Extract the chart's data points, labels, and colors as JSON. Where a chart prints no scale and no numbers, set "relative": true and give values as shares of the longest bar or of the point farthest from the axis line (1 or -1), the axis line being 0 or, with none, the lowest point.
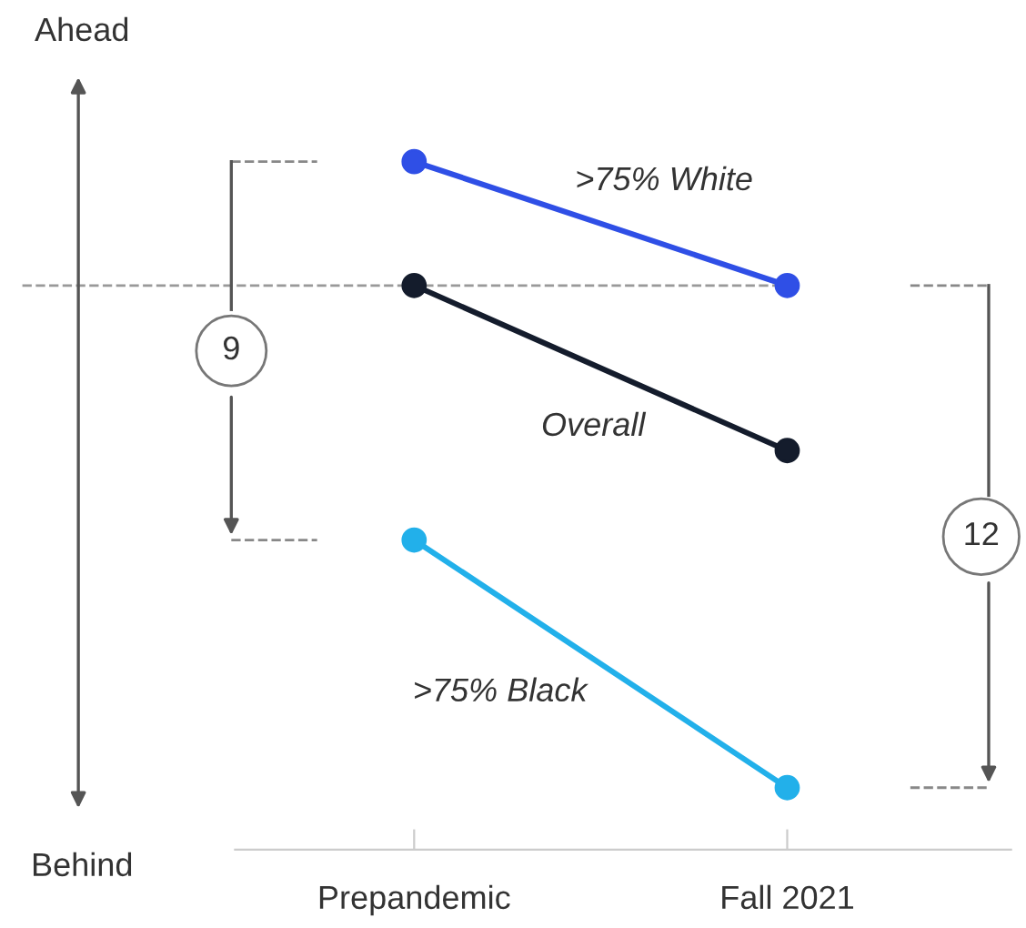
{
  "chart_data": {
    "type": "line",
    "relative": true,
    "categories": [
      "Prepandemic",
      "Fall 2021"
    ],
    "series": [
      {
        "name": ">75% White",
        "color": "#2f4fe6",
        "values": [
          1,
          0.82
        ]
      },
      {
        "name": "Overall",
        "color": "#141c2c",
        "values": [
          0.82,
          0.58
        ]
      },
      {
        "name": ">75% Black",
        "color": "#22b0ea",
        "values": [
          0.45,
          0.09
        ]
      }
    ],
    "marker": "circle",
    "line_style": "solid",
    "grid": false,
    "legend": false,
    "ref_lines": [
      {
        "axis": "y",
        "value": 0.82,
        "label": null,
        "color": "#999999",
        "line_style": "dashed"
      }
    ],
    "annotations": [
      "Ahead",
      "Behind",
      "9",
      "12"
    ]
  }
}
